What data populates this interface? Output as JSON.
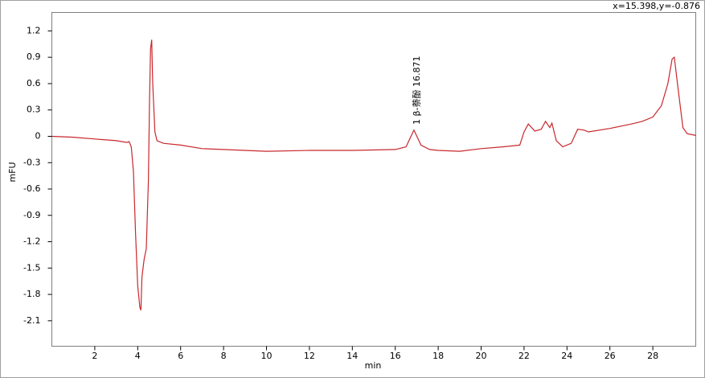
{
  "chart_data": {
    "type": "line",
    "cursor_readout": "x=15.398,y=-0.876",
    "xlabel": "min",
    "ylabel": "mFU",
    "xlim": [
      0,
      30
    ],
    "ylim": [
      -2.39,
      1.41
    ],
    "xticks": [
      2,
      4,
      6,
      8,
      10,
      12,
      14,
      16,
      18,
      20,
      22,
      24,
      26,
      28
    ],
    "yticks": [
      1.2,
      0.9,
      0.6,
      0.3,
      0,
      -0.3,
      -0.6,
      -0.9,
      -1.2,
      -1.5,
      -1.8,
      -2.1
    ],
    "annotations": [
      {
        "text": "1 β-萘酚 16.871",
        "x": 16.871
      }
    ],
    "series": [
      {
        "name": "mFU",
        "color": "#c8282d",
        "x": [
          0,
          1,
          2,
          3,
          3.5,
          3.6,
          3.7,
          3.8,
          3.9,
          4.0,
          4.1,
          4.15,
          4.2,
          4.3,
          4.4,
          4.5,
          4.55,
          4.6,
          4.65,
          4.7,
          4.8,
          4.9,
          5.2,
          6,
          7,
          8,
          9,
          10,
          12,
          14,
          16,
          16.5,
          16.87,
          17.2,
          17.6,
          18,
          19,
          20,
          21,
          21.8,
          22,
          22.2,
          22.5,
          22.8,
          23.0,
          23.2,
          23.3,
          23.5,
          23.8,
          24.2,
          24.5,
          24.8,
          25,
          26,
          27,
          27.5,
          28,
          28.4,
          28.7,
          28.9,
          29.0,
          29.2,
          29.4,
          29.6,
          30
        ],
        "values": [
          0,
          -0.01,
          -0.03,
          -0.05,
          -0.07,
          -0.06,
          -0.12,
          -0.4,
          -1.1,
          -1.7,
          -1.95,
          -1.98,
          -1.6,
          -1.4,
          -1.28,
          -0.5,
          0.4,
          1.0,
          1.1,
          0.6,
          0.05,
          -0.05,
          -0.08,
          -0.1,
          -0.14,
          -0.15,
          -0.16,
          -0.17,
          -0.16,
          -0.16,
          -0.15,
          -0.12,
          0.07,
          -0.1,
          -0.15,
          -0.16,
          -0.17,
          -0.14,
          -0.12,
          -0.1,
          0.05,
          0.14,
          0.06,
          0.08,
          0.17,
          0.1,
          0.15,
          -0.05,
          -0.12,
          -0.08,
          0.08,
          0.07,
          0.05,
          0.09,
          0.14,
          0.17,
          0.22,
          0.35,
          0.6,
          0.88,
          0.9,
          0.5,
          0.1,
          0.03,
          0.01
        ]
      }
    ]
  }
}
